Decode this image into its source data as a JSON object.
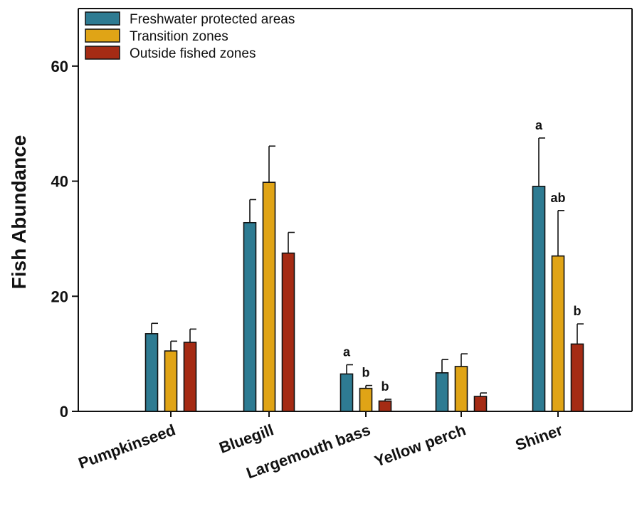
{
  "chart_data": {
    "type": "bar",
    "title": "",
    "xlabel": "",
    "ylabel": "Fish Abundance",
    "ylim": [
      0,
      70
    ],
    "yticks": [
      0,
      20,
      40,
      60
    ],
    "categories": [
      "Pumpkinseed",
      "Bluegill",
      "Largemouth bass",
      "Yellow perch",
      "Shiner"
    ],
    "series": [
      {
        "name": "Freshwater protected areas",
        "color": "#2e7b92",
        "values": [
          13.5,
          32.8,
          6.5,
          6.7,
          39.1
        ],
        "errors": [
          1.8,
          4.0,
          1.6,
          2.3,
          8.4
        ],
        "annotations": [
          "",
          "",
          "a",
          "",
          "a"
        ]
      },
      {
        "name": "Transition zones",
        "color": "#e0a416",
        "values": [
          10.5,
          39.8,
          4.0,
          7.8,
          27.0
        ],
        "errors": [
          1.7,
          6.3,
          0.5,
          2.2,
          7.9
        ],
        "annotations": [
          "",
          "",
          "b",
          "",
          "ab"
        ]
      },
      {
        "name": "Outside fished zones",
        "color": "#a52b14",
        "values": [
          12.0,
          27.5,
          1.8,
          2.6,
          11.7
        ],
        "errors": [
          2.3,
          3.6,
          0.3,
          0.6,
          3.5
        ],
        "annotations": [
          "",
          "",
          "b",
          "",
          "b"
        ]
      }
    ],
    "legend": "top-left",
    "grid": false
  }
}
